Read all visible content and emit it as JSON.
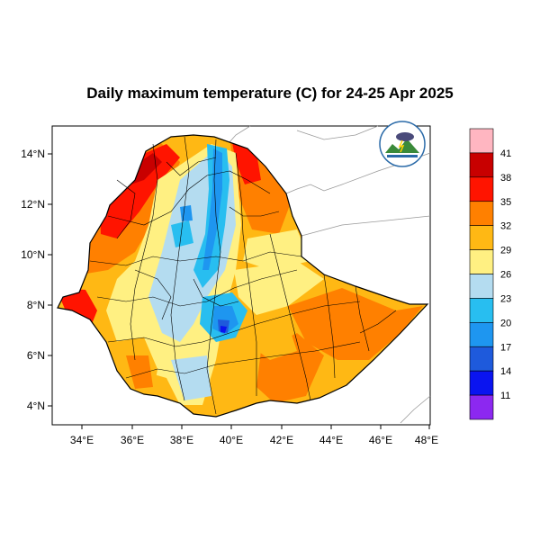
{
  "title": "Daily maximum temperature (C) for 24-25 Apr 2025",
  "axes": {
    "lon_ticks": [
      "34°E",
      "36°E",
      "38°E",
      "40°E",
      "42°E",
      "44°E",
      "46°E",
      "48°E"
    ],
    "lat_ticks": [
      "14°N",
      "12°N",
      "10°N",
      "8°N",
      "6°N",
      "4°N"
    ],
    "lon_range": [
      33,
      48.2
    ],
    "lat_range": [
      3.2,
      15
    ]
  },
  "colorbar": {
    "labels": [
      "41",
      "38",
      "35",
      "32",
      "29",
      "26",
      "23",
      "20",
      "17",
      "14",
      "11"
    ],
    "colors": [
      "#ffb6c1",
      "#c80000",
      "#ff1400",
      "#ff8000",
      "#ffb814",
      "#fff082",
      "#b4dcf0",
      "#28bef0",
      "#1e96f0",
      "#1e5adc",
      "#0a14f0",
      "#8c28f0"
    ]
  },
  "logo": {
    "name": "ethiopian-meteorology-institute-logo"
  }
}
